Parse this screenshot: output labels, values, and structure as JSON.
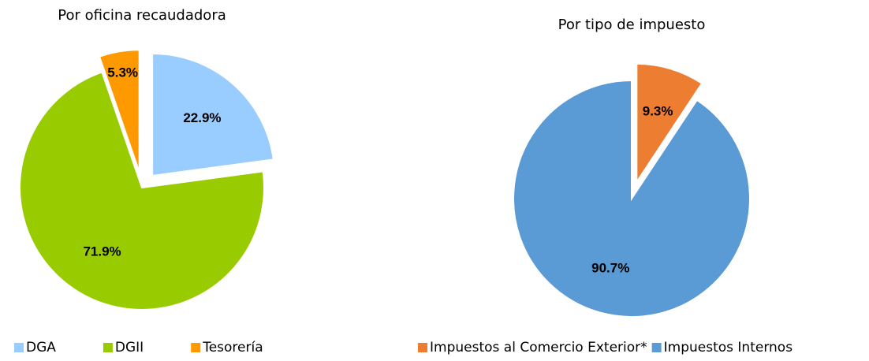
{
  "chart_data": [
    {
      "type": "pie",
      "title": "Por oficina recaudadora",
      "categories": [
        "DGA",
        "DGII",
        "Tesorería"
      ],
      "values": [
        22.9,
        71.9,
        5.3
      ],
      "value_labels": [
        "22.9%",
        "71.9%",
        "5.3%"
      ],
      "colors": [
        "#99ccff",
        "#99cc00",
        "#ff9900"
      ],
      "legend": "bottom"
    },
    {
      "type": "pie",
      "title": "Por tipo de impuesto",
      "categories": [
        "Impuestos al Comercio Exterior*",
        "Impuestos Internos"
      ],
      "values": [
        9.3,
        90.7
      ],
      "value_labels": [
        "9.3%",
        "90.7%"
      ],
      "colors": [
        "#ed7d31",
        "#5b9bd5"
      ],
      "legend": "bottom"
    }
  ]
}
